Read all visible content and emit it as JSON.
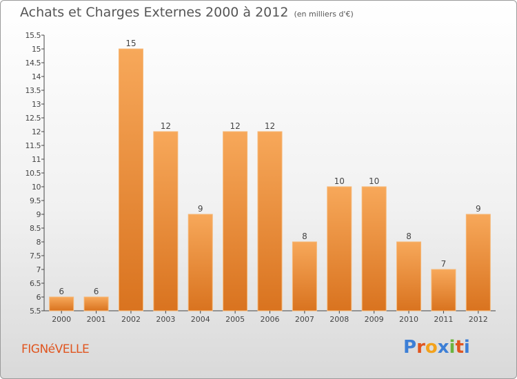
{
  "header": {
    "title": "Achats et Charges Externes 2000 à 2012",
    "subtitle": "(en milliers d'€)"
  },
  "footer": {
    "commune": "FIGNéVELLE",
    "logo": [
      "P",
      "r",
      "o",
      "x",
      "i",
      "t",
      "i"
    ]
  },
  "colors": {
    "bar_light": "#f7a85a",
    "bar_dark": "#d9731f",
    "logo_letters": [
      "#3d7fd6",
      "#e0551f",
      "#f3a21c",
      "#3d7fd6",
      "#6cb33f",
      "#e0551f",
      "#3d7fd6"
    ]
  },
  "chart_data": {
    "type": "bar",
    "categories": [
      "2000",
      "2001",
      "2002",
      "2003",
      "2004",
      "2005",
      "2006",
      "2007",
      "2008",
      "2009",
      "2010",
      "2011",
      "2012"
    ],
    "values": [
      6,
      6,
      15,
      12,
      9,
      12,
      12,
      8,
      10,
      10,
      8,
      7,
      9
    ],
    "data_labels": [
      "6",
      "6",
      "15",
      "12",
      "9",
      "12",
      "12",
      "8",
      "10",
      "10",
      "8",
      "7",
      "9"
    ],
    "ylim": [
      5.5,
      15.5
    ],
    "yticks": [
      "5.5",
      "6",
      "6.5",
      "7",
      "7.5",
      "8",
      "8.5",
      "9",
      "9.5",
      "10",
      "10.5",
      "11",
      "11.5",
      "12",
      "12.5",
      "13",
      "13.5",
      "14",
      "14.5",
      "15",
      "15.5"
    ],
    "grid": false,
    "legend": "none"
  }
}
